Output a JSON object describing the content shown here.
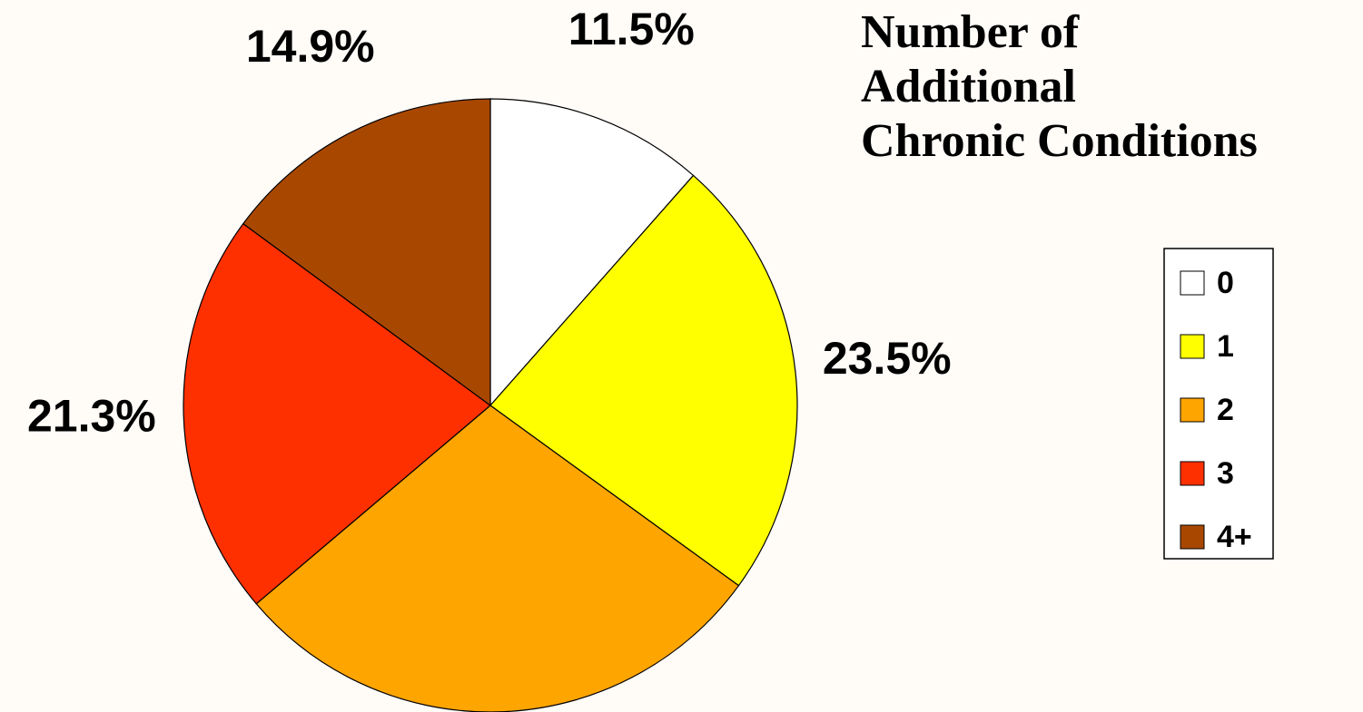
{
  "chart_data": {
    "type": "pie",
    "title": [
      "Number of",
      "Additional",
      "Chronic Conditions"
    ],
    "categories": [
      "0",
      "1",
      "2",
      "3",
      "4+"
    ],
    "values": [
      11.5,
      23.5,
      28.8,
      21.3,
      14.9
    ],
    "value_labels": [
      "11.5%",
      "23.5%",
      null,
      "21.3%",
      "14.9%"
    ],
    "colors": [
      "#ffffff",
      "#ffff00",
      "#ffa500",
      "#ff3000",
      "#a84800"
    ],
    "legend": "right"
  }
}
